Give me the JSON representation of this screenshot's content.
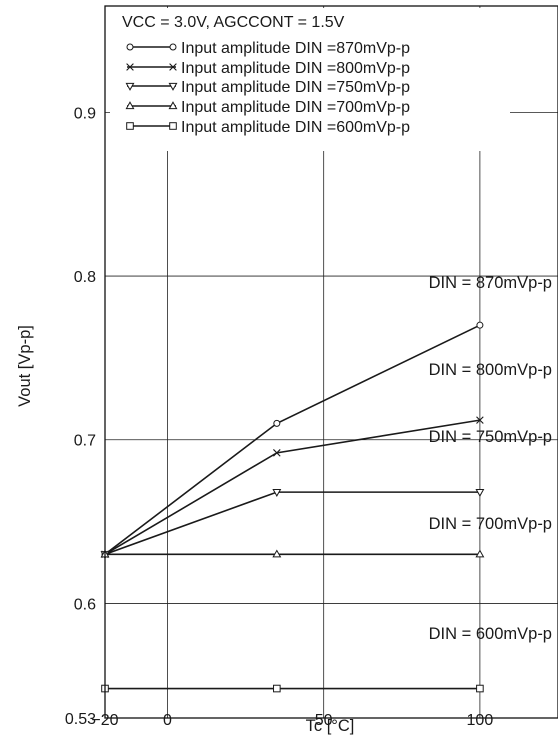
{
  "chart_data": {
    "type": "line",
    "xlabel": "Tc [°C]",
    "ylabel": "Vout [Vp-p]",
    "xlim": [
      -20,
      125
    ],
    "ylim": [
      0.53,
      0.965
    ],
    "x_ticks": [
      {
        "value": -20,
        "label": "−20"
      },
      {
        "value": 0,
        "label": "0"
      },
      {
        "value": 50,
        "label": "50"
      },
      {
        "value": 100,
        "label": "100"
      }
    ],
    "y_ticks": [
      {
        "value": 0.53,
        "label": "0.53"
      },
      {
        "value": 0.6,
        "label": "0.6"
      },
      {
        "value": 0.7,
        "label": "0.7"
      },
      {
        "value": 0.8,
        "label": "0.8"
      },
      {
        "value": 0.9,
        "label": "0.9"
      }
    ],
    "x_grid": [
      0,
      50,
      100
    ],
    "y_grid": [
      0.6,
      0.7,
      0.8,
      0.9
    ],
    "grid": true,
    "legend_position": "top-left",
    "legend_title": "VCC = 3.0V, AGCCONT = 1.5V",
    "series": [
      {
        "name": "Input amplitude DIN =870mVp-p",
        "marker": "circle",
        "label": "DIN = 870mVp-p",
        "x": [
          -20,
          35,
          100
        ],
        "y": [
          0.63,
          0.71,
          0.77
        ]
      },
      {
        "name": "Input amplitude DIN =800mVp-p",
        "marker": "cross",
        "label": "DIN = 800mVp-p",
        "x": [
          -20,
          35,
          100
        ],
        "y": [
          0.63,
          0.692,
          0.712
        ]
      },
      {
        "name": "Input amplitude DIN =750mVp-p",
        "marker": "triangle-down",
        "label": "DIN = 750mVp-p",
        "x": [
          -20,
          35,
          100
        ],
        "y": [
          0.63,
          0.668,
          0.668
        ]
      },
      {
        "name": "Input amplitude DIN =700mVp-p",
        "marker": "triangle-up",
        "label": "DIN = 700mVp-p",
        "x": [
          -20,
          35,
          100
        ],
        "y": [
          0.63,
          0.63,
          0.63
        ]
      },
      {
        "name": "Input amplitude DIN =600mVp-p",
        "marker": "square",
        "label": "DIN = 600mVp-p",
        "x": [
          -20,
          35,
          100
        ],
        "y": [
          0.548,
          0.548,
          0.548
        ]
      }
    ]
  }
}
